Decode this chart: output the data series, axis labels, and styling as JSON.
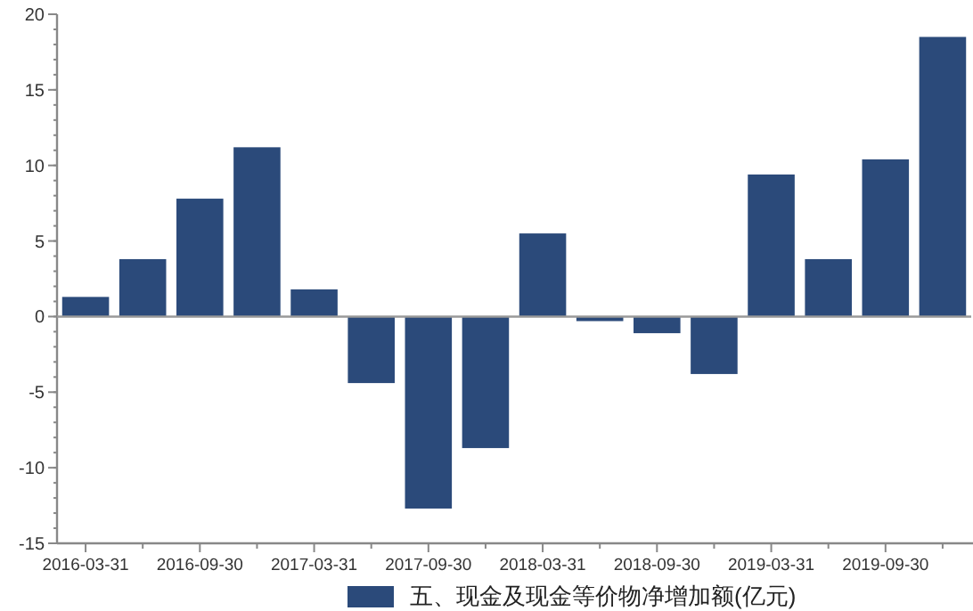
{
  "chart_data": {
    "type": "bar",
    "categories": [
      "2016-03-31",
      null,
      "2016-09-30",
      null,
      "2017-03-31",
      null,
      "2017-09-30",
      null,
      "2018-03-31",
      null,
      "2018-09-30",
      null,
      "2019-03-31",
      null,
      "2019-09-30",
      null
    ],
    "series": [
      {
        "name": "五、现金及现金等价物净增加额(亿元)",
        "color": "#2b4a7a",
        "values": [
          1.3,
          3.8,
          7.8,
          11.2,
          1.8,
          -4.4,
          -12.7,
          -8.7,
          5.5,
          -0.3,
          -1.1,
          -3.8,
          9.4,
          3.8,
          10.4,
          18.5
        ]
      }
    ],
    "ylim": [
      -15,
      20
    ],
    "yticks": [
      -15,
      -10,
      -5,
      0,
      5,
      10,
      15,
      20
    ],
    "legend": "bottom"
  }
}
